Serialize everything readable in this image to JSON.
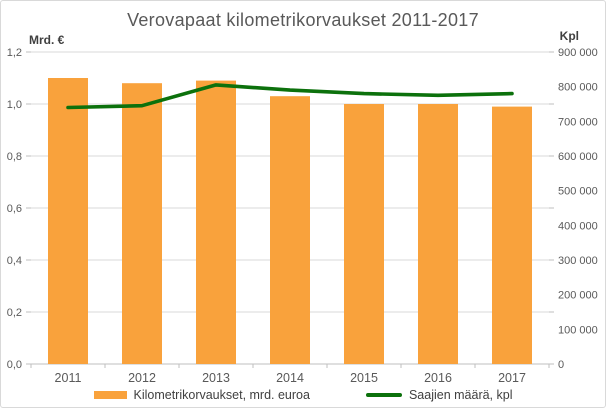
{
  "chart_data": {
    "type": "combo-bar-line",
    "title": "Verovapaat kilometrikorvaukset 2011-2017",
    "categories": [
      "2011",
      "2012",
      "2013",
      "2014",
      "2015",
      "2016",
      "2017"
    ],
    "series": [
      {
        "name": "Kilometrikorvaukset, mrd. euroa",
        "type": "bar",
        "axis": "left",
        "color": "#F9A23C",
        "values": [
          1.1,
          1.08,
          1.09,
          1.03,
          1.0,
          1.0,
          0.99
        ]
      },
      {
        "name": "Saajien määrä, kpl",
        "type": "line",
        "axis": "right",
        "color": "#0C710C",
        "values": [
          740000,
          745000,
          805000,
          790000,
          780000,
          775000,
          780000
        ]
      }
    ],
    "left_axis": {
      "unit": "Mrd. €",
      "min": 0,
      "max": 1.2,
      "step": 0.2,
      "tick_labels": [
        "1,2",
        "1,0",
        "0,8",
        "0,6",
        "0,4",
        "0,2",
        "0,0"
      ]
    },
    "right_axis": {
      "unit": "Kpl",
      "min": 0,
      "max": 900000,
      "step": 100000,
      "tick_labels": [
        "900 000",
        "800 000",
        "700 000",
        "600 000",
        "500 000",
        "400 000",
        "300 000",
        "200 000",
        "100 000",
        "0"
      ]
    },
    "grid": true,
    "legend_position": "bottom"
  },
  "styles": {
    "grid_color": "#D9D9D9",
    "axis_color": "#BFBFBF",
    "tick_text_color": "#595959",
    "category_text_color": "#595959",
    "title_color": "#595959",
    "legend_text_color": "#404040",
    "background": "#FFFFFF"
  }
}
